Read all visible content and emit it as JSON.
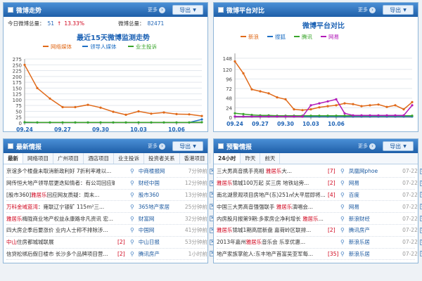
{
  "panels": {
    "trend": {
      "title": "微博走势",
      "more": "更多",
      "export": "导出"
    },
    "compare": {
      "title": "微博平台对比",
      "more": "更多",
      "export": "导出"
    },
    "news": {
      "title": "最新情报",
      "more": "更多",
      "export": "导出"
    },
    "alert": {
      "title": "预警情报",
      "more": "更多",
      "export": "导出"
    }
  },
  "stats": {
    "today_label": "今日微博总量：",
    "today_value": "51",
    "pct": "13.33%",
    "total_label": "微博总量：",
    "total_value": "82471"
  },
  "chart_data": [
    {
      "type": "line",
      "title": "最近15天微博监测走势",
      "ylim": [
        0,
        275
      ],
      "yticks": [
        "275",
        "250",
        "225",
        "200",
        "175",
        "150",
        "125",
        "100",
        "75",
        "50",
        "25",
        "0"
      ],
      "x_ticks": [
        "09.24",
        "09.27",
        "09.30",
        "10.03",
        "10.06"
      ],
      "x": [
        "09.24",
        "09.25",
        "09.26",
        "09.27",
        "09.28",
        "09.29",
        "09.30",
        "10.01",
        "10.02",
        "10.03",
        "10.04",
        "10.05",
        "10.06",
        "10.07",
        "10.08"
      ],
      "series": [
        {
          "name": "网络媒体",
          "color": "#e06a1a",
          "values": [
            250,
            150,
            105,
            68,
            68,
            78,
            66,
            48,
            35,
            50,
            40,
            45,
            38,
            37,
            30
          ]
        },
        {
          "name": "领导人媒体",
          "color": "#1e6fc4",
          "values": [
            2,
            2,
            2,
            2,
            2,
            2,
            2,
            2,
            2,
            2,
            2,
            2,
            2,
            2,
            15
          ]
        },
        {
          "name": "业主投诉",
          "color": "#3aa52b",
          "values": [
            3,
            2,
            2,
            2,
            2,
            2,
            2,
            2,
            2,
            2,
            2,
            2,
            2,
            2,
            3
          ]
        }
      ]
    },
    {
      "type": "line",
      "title": "微博平台对比",
      "ylim": [
        0,
        160
      ],
      "yticks": [
        "148",
        "120",
        "96",
        "72",
        "48",
        "24",
        "0"
      ],
      "ytick_values": [
        148,
        120,
        96,
        72,
        48,
        24,
        0
      ],
      "x_ticks": [
        "09.24",
        "09.27",
        "09.30",
        "10.03",
        "10.06"
      ],
      "x": [
        "09.24",
        "09.25",
        "09.26",
        "09.27",
        "09.28",
        "09.29",
        "09.30",
        "10.01",
        "10.02",
        "10.03",
        "10.04",
        "10.05",
        "10.06",
        "10.07",
        "10.08",
        "10.09",
        "10.10",
        "10.11",
        "10.12",
        "10.13",
        "10.14",
        "10.15"
      ],
      "series": [
        {
          "name": "新浪",
          "color": "#e06a1a",
          "values": [
            140,
            110,
            70,
            65,
            60,
            50,
            45,
            20,
            18,
            20,
            25,
            28,
            30,
            35,
            33,
            28,
            30,
            32,
            26,
            30,
            20,
            38
          ]
        },
        {
          "name": "搜狐",
          "color": "#1e6fc4",
          "values": [
            2,
            2,
            2,
            2,
            2,
            2,
            2,
            2,
            2,
            2,
            2,
            2,
            2,
            2,
            2,
            2,
            2,
            2,
            2,
            2,
            2,
            2
          ]
        },
        {
          "name": "腾讯",
          "color": "#3aa52b",
          "values": [
            10,
            8,
            6,
            5,
            5,
            4,
            4,
            4,
            4,
            4,
            4,
            4,
            4,
            4,
            4,
            4,
            4,
            4,
            4,
            4,
            4,
            4
          ]
        },
        {
          "name": "网易",
          "color": "#b21ab8",
          "values": [
            2,
            2,
            2,
            2,
            2,
            2,
            2,
            2,
            2,
            30,
            35,
            40,
            45,
            10,
            5,
            5,
            5,
            5,
            5,
            5,
            5,
            30
          ]
        }
      ]
    }
  ],
  "news_tabs": [
    "最新",
    "网络项目",
    "广州项目",
    "酒店项目",
    "业主投诉",
    "投资者关系",
    "香港项目"
  ],
  "news": [
    {
      "title": "京谊多个楼盘未取消新政利好 7折利率难以...",
      "hl": "",
      "badge": "",
      "src": "中商楼报网",
      "time": "7分钟前"
    },
    {
      "title": "网传恒大地产领导层更迭知情者：有公司回应确...",
      "hl": "",
      "badge": "",
      "src": "财经中国",
      "time": "12分钟前"
    },
    {
      "title": "[股市360]",
      "hl": "雅居乐",
      "rest": "回应网友质疑：周末...",
      "badge": "",
      "src": "股市360",
      "time": "13分钟前"
    },
    {
      "title": "",
      "hl": "万科金域蓝湾",
      "rest": "：雍联辽宁银矿 115m²三...",
      "badge": "",
      "src": "365地产家居",
      "time": "25分钟前"
    },
    {
      "title": "",
      "hl": "雅居乐",
      "rest": "梅陇商业地产权益永康路非凡资讯 宏...",
      "badge": "",
      "src": "财富网",
      "time": "32分钟前"
    },
    {
      "title": "四大房企季后要涨价 业内人士称不排除涉...",
      "hl": "",
      "badge": "",
      "src": "中国网",
      "time": "41分钟前"
    },
    {
      "title": "",
      "hl": "中山",
      "rest": "住房都城城联展",
      "badge": "[2]",
      "src": "中山日报",
      "time": "53分钟前"
    },
    {
      "title": "信贷松绑后假日楼市 长沙多个品牌项目营...",
      "hl": "",
      "badge": "[2]",
      "src": "腾讯房产",
      "time": "1小时前"
    }
  ],
  "alert_tabs": [
    "24小时",
    "昨天",
    "前天"
  ],
  "alerts": [
    {
      "title": "三大男高音携手亮相 ",
      "hl": "雅居乐",
      "rest": "大...",
      "badge": "[7]",
      "src": "凤凰网phoe",
      "time": "07-22"
    },
    {
      "title": "",
      "hl": "雅居乐",
      "rest": "锦城100万起 买三房 地铁站旁...",
      "badge": "[2]",
      "src": "网易",
      "time": "07-22"
    },
    {
      "title": "南北湖景观项目房地产(东)251㎡大平层即将...",
      "hl": "",
      "rest": "",
      "badge": "[4]",
      "src": "百度",
      "time": "07-22"
    },
    {
      "title": "中国三大男高音强强联手 ",
      "hl": "雅居乐",
      "rest": "演唱会...",
      "badge": "",
      "src": "网易",
      "time": "07-22"
    },
    {
      "title": "内房股月报第9期:多家房企净利增长 ",
      "hl": "雅居乐",
      "rest": "...",
      "badge": "",
      "src": "新浪财经",
      "time": "07-22"
    },
    {
      "title": "",
      "hl": "雅居乐",
      "rest": "锦城1期高层新盘 嘉荷岭区联排...",
      "badge": "[2]",
      "src": "腾讯房产",
      "time": "07-22"
    },
    {
      "title": "2013年嘉州",
      "hl": "雅居乐",
      "rest": "音乐会 乐享优惠...",
      "badge": "",
      "src": "新浪乐居",
      "time": "07-22"
    },
    {
      "title": "地产家族掌舵人:东丰地产首富吴亚军每...",
      "hl": "",
      "rest": "",
      "badge": "[35]",
      "src": "新浪乐居",
      "time": "07-22"
    }
  ]
}
